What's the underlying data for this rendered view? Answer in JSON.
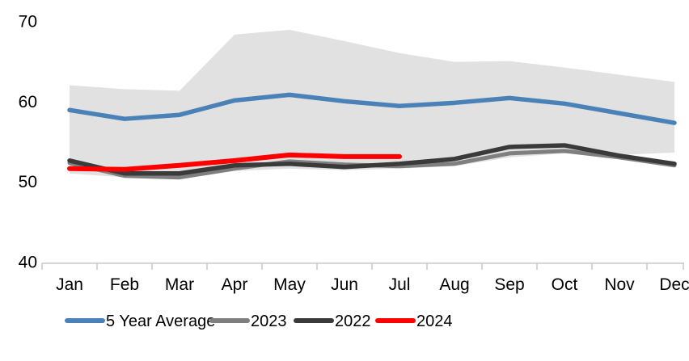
{
  "chart_data": {
    "type": "line",
    "title": "",
    "xlabel": "",
    "ylabel": "",
    "categories": [
      "Jan",
      "Feb",
      "Mar",
      "Apr",
      "May",
      "Jun",
      "Jul",
      "Aug",
      "Sep",
      "Oct",
      "Nov",
      "Dec"
    ],
    "ylim": [
      40,
      70
    ],
    "yticks": [
      70,
      60,
      50,
      40
    ],
    "grid": false,
    "legend_position": "bottom",
    "band": {
      "name": "5-year-range",
      "color": "#e1e1e1",
      "top": [
        62.0,
        61.5,
        61.3,
        68.3,
        68.9,
        67.5,
        66.0,
        64.9,
        65.0,
        64.2,
        63.3,
        62.4
      ],
      "bottom": [
        51.0,
        50.5,
        50.3,
        51.3,
        51.6,
        51.4,
        51.6,
        51.9,
        53.0,
        53.5,
        53.3,
        53.6
      ]
    },
    "series": [
      {
        "name": "5 Year Average",
        "color": "#4a82b8",
        "values": [
          58.9,
          57.8,
          58.3,
          60.1,
          60.8,
          60.0,
          59.4,
          59.8,
          60.4,
          59.7,
          58.5,
          57.3
        ]
      },
      {
        "name": "2023",
        "color": "#7f7f7f",
        "values": [
          52.3,
          50.7,
          50.5,
          51.6,
          52.5,
          52.1,
          51.9,
          52.2,
          53.5,
          53.8,
          53.0,
          52.0
        ]
      },
      {
        "name": "2022",
        "color": "#3a3a3a",
        "values": [
          52.6,
          51.0,
          51.0,
          52.0,
          52.2,
          51.8,
          52.2,
          52.8,
          54.3,
          54.5,
          53.2,
          52.2
        ]
      },
      {
        "name": "2024",
        "color": "#fe0000",
        "values": [
          51.6,
          51.5,
          52.0,
          52.6,
          53.3,
          53.1,
          53.1
        ]
      }
    ],
    "axis_color": "#c9c9c9",
    "text_color": "#000000"
  }
}
